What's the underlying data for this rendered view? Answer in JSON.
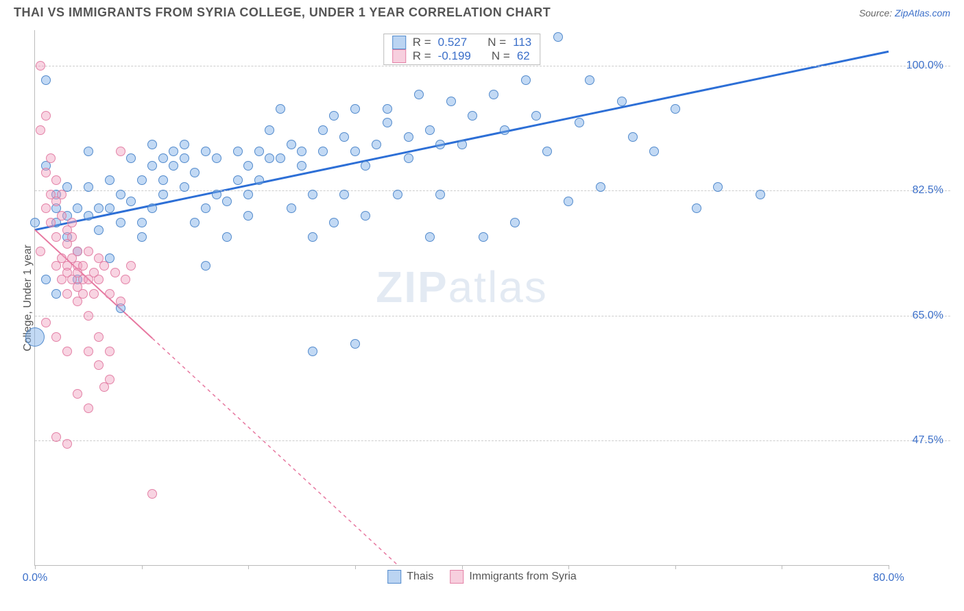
{
  "title": "THAI VS IMMIGRANTS FROM SYRIA COLLEGE, UNDER 1 YEAR CORRELATION CHART",
  "source_prefix": "Source: ",
  "source_name": "ZipAtlas.com",
  "y_axis_label": "College, Under 1 year",
  "watermark": "ZIPatlas",
  "chart": {
    "type": "scatter",
    "xlim": [
      0,
      80
    ],
    "ylim": [
      30,
      105
    ],
    "x_ticks": [
      0,
      10,
      20,
      30,
      40,
      50,
      60,
      70,
      80
    ],
    "x_tick_labels": {
      "0": "0.0%",
      "80": "80.0%"
    },
    "y_gridlines": [
      47.5,
      65.0,
      82.5,
      100.0
    ],
    "y_tick_labels": [
      "47.5%",
      "65.0%",
      "82.5%",
      "100.0%"
    ],
    "background_color": "#ffffff",
    "grid_color": "#cccccc",
    "axis_color": "#bbbbbb",
    "marker_default_size": 16,
    "series": [
      {
        "name": "Thais",
        "color_fill": "rgba(120,170,230,0.45)",
        "color_stroke": "rgba(70,130,200,0.9)",
        "R": "0.527",
        "N": "113",
        "trend": {
          "x1": 0,
          "y1": 77,
          "x2": 80,
          "y2": 102,
          "color": "#2d6fd6",
          "width": 3,
          "dash_after_x": null
        },
        "points": [
          [
            0,
            62,
            28
          ],
          [
            0,
            78,
            14
          ],
          [
            1,
            70,
            14
          ],
          [
            1,
            86,
            14
          ],
          [
            1,
            98,
            14
          ],
          [
            2,
            78,
            14
          ],
          [
            2,
            80,
            14
          ],
          [
            2,
            82,
            14
          ],
          [
            2,
            68,
            14
          ],
          [
            3,
            79,
            14
          ],
          [
            3,
            83,
            14
          ],
          [
            3,
            76,
            14
          ],
          [
            4,
            80,
            14
          ],
          [
            4,
            74,
            14
          ],
          [
            4,
            70,
            14
          ],
          [
            5,
            83,
            14
          ],
          [
            5,
            79,
            14
          ],
          [
            5,
            88,
            14
          ],
          [
            6,
            80,
            14
          ],
          [
            6,
            77,
            14
          ],
          [
            7,
            84,
            14
          ],
          [
            7,
            80,
            14
          ],
          [
            7,
            73,
            14
          ],
          [
            8,
            78,
            14
          ],
          [
            8,
            82,
            14
          ],
          [
            8,
            66,
            14
          ],
          [
            9,
            87,
            14
          ],
          [
            9,
            81,
            14
          ],
          [
            10,
            78,
            14
          ],
          [
            10,
            84,
            14
          ],
          [
            10,
            76,
            14
          ],
          [
            11,
            86,
            14
          ],
          [
            11,
            89,
            14
          ],
          [
            11,
            80,
            14
          ],
          [
            12,
            87,
            14
          ],
          [
            12,
            84,
            14
          ],
          [
            12,
            82,
            14
          ],
          [
            13,
            88,
            14
          ],
          [
            13,
            86,
            14
          ],
          [
            14,
            87,
            14
          ],
          [
            14,
            83,
            14
          ],
          [
            14,
            89,
            14
          ],
          [
            15,
            78,
            14
          ],
          [
            15,
            85,
            14
          ],
          [
            16,
            88,
            14
          ],
          [
            16,
            80,
            14
          ],
          [
            16,
            72,
            14
          ],
          [
            17,
            82,
            14
          ],
          [
            17,
            87,
            14
          ],
          [
            18,
            81,
            14
          ],
          [
            18,
            76,
            14
          ],
          [
            19,
            84,
            14
          ],
          [
            19,
            88,
            14
          ],
          [
            20,
            82,
            14
          ],
          [
            20,
            86,
            14
          ],
          [
            20,
            79,
            14
          ],
          [
            21,
            88,
            14
          ],
          [
            21,
            84,
            14
          ],
          [
            22,
            87,
            14
          ],
          [
            22,
            91,
            14
          ],
          [
            23,
            94,
            14
          ],
          [
            23,
            87,
            14
          ],
          [
            24,
            89,
            14
          ],
          [
            24,
            80,
            14
          ],
          [
            25,
            88,
            14
          ],
          [
            25,
            86,
            14
          ],
          [
            26,
            76,
            14
          ],
          [
            26,
            82,
            14
          ],
          [
            26,
            60,
            14
          ],
          [
            27,
            88,
            14
          ],
          [
            27,
            91,
            14
          ],
          [
            28,
            93,
            14
          ],
          [
            28,
            78,
            14
          ],
          [
            29,
            90,
            14
          ],
          [
            29,
            82,
            14
          ],
          [
            30,
            94,
            14
          ],
          [
            30,
            88,
            14
          ],
          [
            30,
            61,
            14
          ],
          [
            31,
            79,
            14
          ],
          [
            31,
            86,
            14
          ],
          [
            32,
            89,
            14
          ],
          [
            33,
            92,
            14
          ],
          [
            33,
            94,
            14
          ],
          [
            34,
            82,
            14
          ],
          [
            35,
            90,
            14
          ],
          [
            35,
            87,
            14
          ],
          [
            36,
            96,
            14
          ],
          [
            37,
            76,
            14
          ],
          [
            37,
            91,
            14
          ],
          [
            38,
            82,
            14
          ],
          [
            38,
            89,
            14
          ],
          [
            39,
            95,
            14
          ],
          [
            40,
            89,
            14
          ],
          [
            41,
            93,
            14
          ],
          [
            42,
            76,
            14
          ],
          [
            43,
            96,
            14
          ],
          [
            44,
            91,
            14
          ],
          [
            45,
            78,
            14
          ],
          [
            46,
            98,
            14
          ],
          [
            47,
            93,
            14
          ],
          [
            48,
            88,
            14
          ],
          [
            49,
            104,
            14
          ],
          [
            50,
            81,
            14
          ],
          [
            51,
            92,
            14
          ],
          [
            52,
            98,
            14
          ],
          [
            53,
            83,
            14
          ],
          [
            55,
            95,
            14
          ],
          [
            56,
            90,
            14
          ],
          [
            58,
            88,
            14
          ],
          [
            60,
            94,
            14
          ],
          [
            62,
            80,
            14
          ],
          [
            64,
            83,
            14
          ],
          [
            68,
            82,
            14
          ]
        ]
      },
      {
        "name": "Immigrants from Syria",
        "color_fill": "rgba(240,160,190,0.45)",
        "color_stroke": "rgba(225,120,160,0.9)",
        "R": "-0.199",
        "N": "62",
        "trend": {
          "x1": 0,
          "y1": 77,
          "x2": 34,
          "y2": 30,
          "color": "#e778a0",
          "width": 2,
          "dash_after_x": 11
        },
        "points": [
          [
            0.5,
            100,
            14
          ],
          [
            0.5,
            91,
            14
          ],
          [
            1,
            93,
            14
          ],
          [
            1,
            85,
            14
          ],
          [
            1,
            80,
            14
          ],
          [
            1.5,
            82,
            14
          ],
          [
            1.5,
            78,
            14
          ],
          [
            1.5,
            87,
            14
          ],
          [
            2,
            81,
            14
          ],
          [
            2,
            76,
            14
          ],
          [
            2,
            72,
            14
          ],
          [
            2,
            84,
            14
          ],
          [
            2.5,
            79,
            14
          ],
          [
            2.5,
            73,
            14
          ],
          [
            2.5,
            70,
            14
          ],
          [
            2.5,
            82,
            14
          ],
          [
            3,
            72,
            14
          ],
          [
            3,
            75,
            14
          ],
          [
            3,
            77,
            14
          ],
          [
            3,
            68,
            14
          ],
          [
            3,
            71,
            14
          ],
          [
            3.5,
            73,
            14
          ],
          [
            3.5,
            76,
            14
          ],
          [
            3.5,
            70,
            14
          ],
          [
            3.5,
            78,
            14
          ],
          [
            4,
            72,
            14
          ],
          [
            4,
            74,
            14
          ],
          [
            4,
            69,
            14
          ],
          [
            4,
            71,
            14
          ],
          [
            4,
            67,
            14
          ],
          [
            4.5,
            72,
            14
          ],
          [
            4.5,
            70,
            14
          ],
          [
            4.5,
            68,
            14
          ],
          [
            5,
            74,
            14
          ],
          [
            5,
            70,
            14
          ],
          [
            5,
            65,
            14
          ],
          [
            5,
            60,
            14
          ],
          [
            5.5,
            71,
            14
          ],
          [
            5.5,
            68,
            14
          ],
          [
            6,
            73,
            14
          ],
          [
            6,
            58,
            14
          ],
          [
            6,
            70,
            14
          ],
          [
            6.5,
            55,
            14
          ],
          [
            6.5,
            72,
            14
          ],
          [
            7,
            56,
            14
          ],
          [
            7,
            68,
            14
          ],
          [
            7.5,
            71,
            14
          ],
          [
            8,
            88,
            14
          ],
          [
            8,
            67,
            14
          ],
          [
            8.5,
            70,
            14
          ],
          [
            9,
            72,
            14
          ],
          [
            2,
            48,
            14
          ],
          [
            3,
            47,
            14
          ],
          [
            4,
            54,
            14
          ],
          [
            5,
            52,
            14
          ],
          [
            11,
            40,
            14
          ],
          [
            2,
            62,
            14
          ],
          [
            3,
            60,
            14
          ],
          [
            0.5,
            74,
            14
          ],
          [
            1,
            64,
            14
          ],
          [
            6,
            62,
            14
          ],
          [
            7,
            60,
            14
          ]
        ]
      }
    ]
  },
  "legend_stats": {
    "rows": [
      {
        "swatch": "blue",
        "r_label": "R =",
        "r_val": "0.527",
        "n_label": "N =",
        "n_val": "113"
      },
      {
        "swatch": "pink",
        "r_label": "R =",
        "r_val": "-0.199",
        "n_label": "N =",
        "n_val": "62"
      }
    ]
  },
  "bottom_legend": [
    {
      "swatch": "blue",
      "label": "Thais"
    },
    {
      "swatch": "pink",
      "label": "Immigrants from Syria"
    }
  ]
}
